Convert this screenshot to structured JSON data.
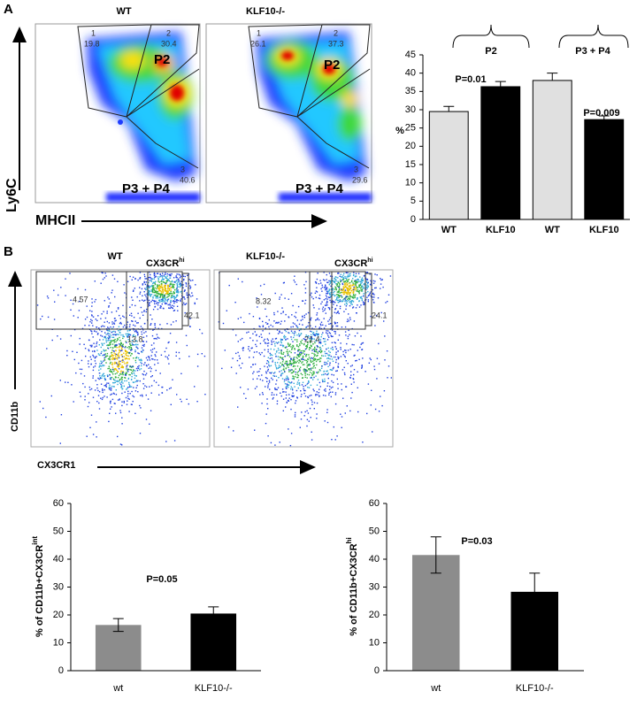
{
  "panel_a": {
    "label": "A",
    "plot_titles": [
      "WT",
      "KLF10-/-"
    ],
    "y_axis": "Ly6C",
    "x_axis": "MHCII",
    "gates": [
      [
        "1",
        "19.8",
        "2",
        "30.4",
        "3",
        "40.6"
      ],
      [
        "1",
        "26.1",
        "2",
        "37.3",
        "3",
        "29.6"
      ]
    ],
    "populations": [
      [
        "P2",
        "P3 + P4"
      ],
      [
        "P2",
        "P3 + P4"
      ]
    ]
  },
  "panel_b": {
    "label": "B",
    "plot_titles": [
      "WT",
      "KLF10-/-"
    ],
    "gate_title": "CX3CR",
    "gate_title_sup": "hi",
    "y_axis": "CD11b",
    "x_axis": "CX3CR1",
    "gates": [
      [
        "4.57",
        "42.1",
        "13.8"
      ],
      [
        "8.32",
        "24.1",
        "21.4"
      ]
    ]
  },
  "chart_data": [
    {
      "type": "bar",
      "ylabel": "%",
      "categories": [
        "WT",
        "KLF10",
        "WT",
        "KLF10"
      ],
      "values": [
        29.5,
        36.3,
        38,
        27.3
      ],
      "errors": [
        1.4,
        1.4,
        2,
        1
      ],
      "colors": [
        "#e0e0e0",
        "#000000",
        "#e0e0e0",
        "#000000"
      ],
      "ylim": [
        0,
        45
      ],
      "yticks": [
        0,
        5,
        10,
        15,
        20,
        25,
        30,
        35,
        40,
        45
      ],
      "annotations": [
        "P2",
        "P3 + P4",
        "P=0.01",
        "P=0.009"
      ]
    },
    {
      "type": "bar",
      "ylabel": "% of CD11b+CX3CR",
      "ylabel_sup": "int",
      "categories": [
        "wt",
        "KLF10-/-"
      ],
      "values": [
        16.4,
        20.5
      ],
      "errors": [
        2.3,
        2.4
      ],
      "colors": [
        "#8c8c8c",
        "#000000"
      ],
      "ylim": [
        0,
        60
      ],
      "yticks": [
        0,
        10,
        20,
        30,
        40,
        50,
        60
      ],
      "annotations": [
        "P=0.05"
      ]
    },
    {
      "type": "bar",
      "ylabel": "% of CD11b+CX3CR",
      "ylabel_sup": "hi",
      "categories": [
        "wt",
        "KLF10-/-"
      ],
      "values": [
        41.5,
        28.3
      ],
      "errors": [
        6.5,
        6.7
      ],
      "colors": [
        "#8c8c8c",
        "#000000"
      ],
      "ylim": [
        0,
        60
      ],
      "yticks": [
        0,
        10,
        20,
        30,
        40,
        50,
        60
      ],
      "annotations": [
        "P=0.03"
      ]
    }
  ]
}
